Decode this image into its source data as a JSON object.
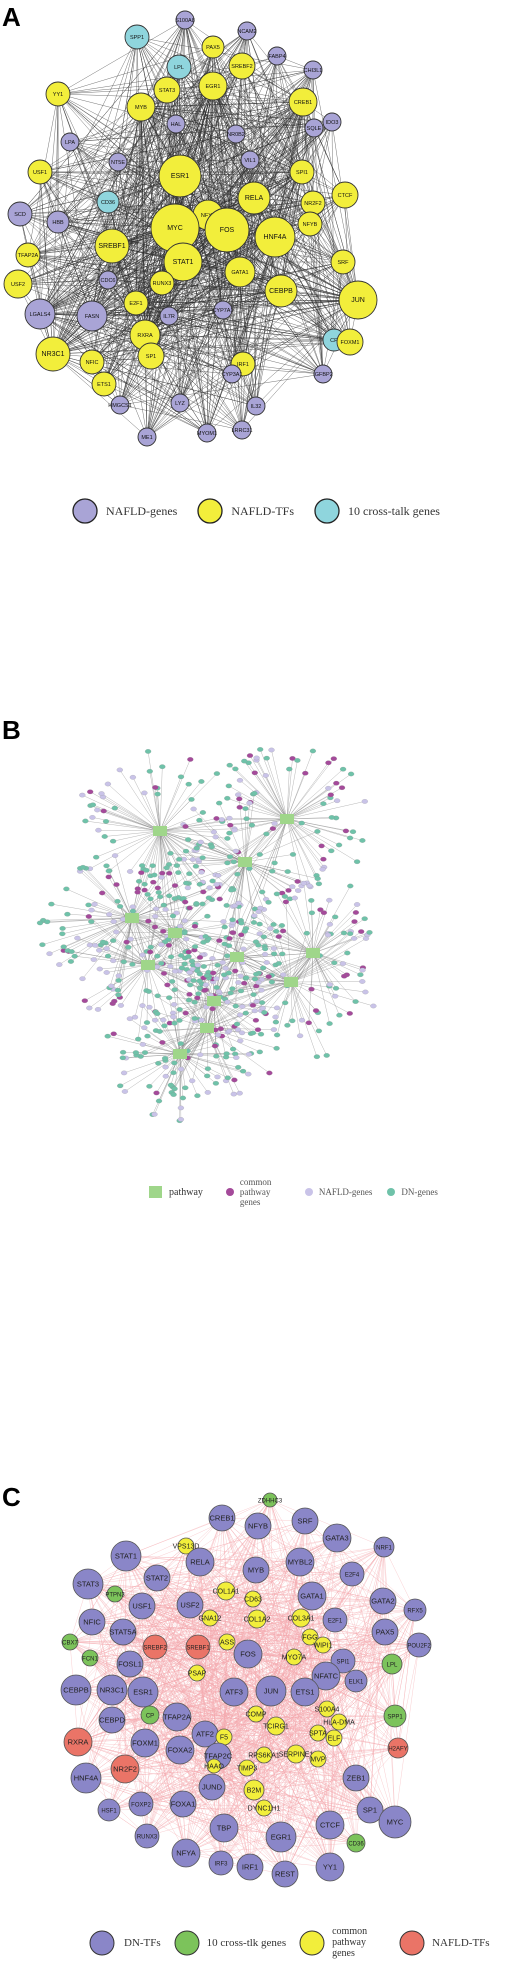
{
  "panels": {
    "a": {
      "label": "A",
      "nodes": [
        {
          "id": "S100A8",
          "t": "g"
        },
        {
          "id": "PAX5",
          "t": "t"
        },
        {
          "id": "NCAM2",
          "t": "g"
        },
        {
          "id": "SPP1",
          "t": "c"
        },
        {
          "id": "LPL",
          "t": "c"
        },
        {
          "id": "STAT3",
          "t": "t"
        },
        {
          "id": "EGR1",
          "t": "t"
        },
        {
          "id": "SREBF2",
          "t": "t"
        },
        {
          "id": "FABP4",
          "t": "g"
        },
        {
          "id": "CHI3L1",
          "t": "g"
        },
        {
          "id": "YY1",
          "t": "t"
        },
        {
          "id": "MYB",
          "t": "t"
        },
        {
          "id": "CREB1",
          "t": "t"
        },
        {
          "id": "HAL",
          "t": "g"
        },
        {
          "id": "NR0B2",
          "t": "g"
        },
        {
          "id": "IDO3",
          "t": "g"
        },
        {
          "id": "LPA",
          "t": "g"
        },
        {
          "id": "USF1",
          "t": "t"
        },
        {
          "id": "SCD",
          "t": "g"
        },
        {
          "id": "ESR1",
          "t": "t"
        },
        {
          "id": "SPI1",
          "t": "t"
        },
        {
          "id": "SQLE",
          "t": "g"
        },
        {
          "id": "NT5E",
          "t": "g"
        },
        {
          "id": "VIL1",
          "t": "g"
        },
        {
          "id": "CTCF",
          "t": "t"
        },
        {
          "id": "RELA",
          "t": "t"
        },
        {
          "id": "NR2F2",
          "t": "t"
        },
        {
          "id": "HBB",
          "t": "g"
        },
        {
          "id": "CD36",
          "t": "c"
        },
        {
          "id": "NFYA",
          "t": "t"
        },
        {
          "id": "NFYB",
          "t": "t"
        },
        {
          "id": "TFAP2A",
          "t": "t"
        },
        {
          "id": "MYC",
          "t": "t"
        },
        {
          "id": "FOS",
          "t": "t"
        },
        {
          "id": "HNF4A",
          "t": "t"
        },
        {
          "id": "SREBF1",
          "t": "t"
        },
        {
          "id": "USF2",
          "t": "t"
        },
        {
          "id": "STAT1",
          "t": "t"
        },
        {
          "id": "GATA1",
          "t": "t"
        },
        {
          "id": "SRF",
          "t": "t"
        },
        {
          "id": "CDC6",
          "t": "g"
        },
        {
          "id": "E2F1",
          "t": "t"
        },
        {
          "id": "RUNX3",
          "t": "t"
        },
        {
          "id": "CEBPB",
          "t": "t"
        },
        {
          "id": "JUN",
          "t": "t"
        },
        {
          "id": "LGALS4",
          "t": "g"
        },
        {
          "id": "IL7R",
          "t": "g"
        },
        {
          "id": "CYP7A1",
          "t": "g"
        },
        {
          "id": "FASN",
          "t": "g"
        },
        {
          "id": "CP",
          "t": "c"
        },
        {
          "id": "FOXM1",
          "t": "t"
        },
        {
          "id": "NR3C1",
          "t": "t"
        },
        {
          "id": "RXRA",
          "t": "t"
        },
        {
          "id": "IGFBP2",
          "t": "g"
        },
        {
          "id": "NFIC",
          "t": "t"
        },
        {
          "id": "SP1",
          "t": "t"
        },
        {
          "id": "IRF1",
          "t": "t"
        },
        {
          "id": "ETS1",
          "t": "t"
        },
        {
          "id": "CYP3A1",
          "t": "g"
        },
        {
          "id": "HMGCS1",
          "t": "g"
        },
        {
          "id": "LYZ",
          "t": "g"
        },
        {
          "id": "IL32",
          "t": "g"
        },
        {
          "id": "ME1",
          "t": "g"
        },
        {
          "id": "MYOM1",
          "t": "g"
        },
        {
          "id": "LRRC31",
          "t": "g"
        }
      ],
      "legend": [
        {
          "label": "NAFLD-genes",
          "color": "#a9a4d6"
        },
        {
          "label": "NAFLD-TFs",
          "color": "#f2ee3b"
        },
        {
          "label": "10 cross-talk genes",
          "color": "#8fd5dd"
        }
      ]
    },
    "b": {
      "label": "B",
      "legend": [
        {
          "label": "pathway",
          "color": "#9fd68a"
        },
        {
          "label": "common pathway genes",
          "color": "#a44a9a"
        },
        {
          "label": "NAFLD-genes",
          "color": "#c9c3e8"
        },
        {
          "label": "DN-genes",
          "color": "#6fc2a9"
        }
      ]
    },
    "c": {
      "label": "C",
      "nodes": [
        {
          "id": "ZDHHC3",
          "t": "x"
        },
        {
          "id": "CREB1",
          "t": "d"
        },
        {
          "id": "SRF",
          "t": "d"
        },
        {
          "id": "NFYB",
          "t": "d"
        },
        {
          "id": "GATA3",
          "t": "d"
        },
        {
          "id": "VPS13D",
          "t": "y"
        },
        {
          "id": "STAT1",
          "t": "d"
        },
        {
          "id": "NRF1",
          "t": "d"
        },
        {
          "id": "RELA",
          "t": "d"
        },
        {
          "id": "MYBL2",
          "t": "d"
        },
        {
          "id": "E2F4",
          "t": "d"
        },
        {
          "id": "MYB",
          "t": "d"
        },
        {
          "id": "STAT3",
          "t": "d"
        },
        {
          "id": "STAT2",
          "t": "d"
        },
        {
          "id": "PTPN3",
          "t": "x"
        },
        {
          "id": "COL1A1",
          "t": "y"
        },
        {
          "id": "GATA1",
          "t": "d"
        },
        {
          "id": "GATA2",
          "t": "d"
        },
        {
          "id": "USF1",
          "t": "d"
        },
        {
          "id": "USF2",
          "t": "d"
        },
        {
          "id": "CD63",
          "t": "y"
        },
        {
          "id": "RFX5",
          "t": "d"
        },
        {
          "id": "E2F1",
          "t": "d"
        },
        {
          "id": "NFIC",
          "t": "d"
        },
        {
          "id": "GNA12",
          "t": "y"
        },
        {
          "id": "COL1A2",
          "t": "y"
        },
        {
          "id": "COL3A1",
          "t": "y"
        },
        {
          "id": "STAT5A",
          "t": "d"
        },
        {
          "id": "FGG",
          "t": "y"
        },
        {
          "id": "PAX5",
          "t": "d"
        },
        {
          "id": "CBX7",
          "t": "x"
        },
        {
          "id": "SREBF2",
          "t": "n"
        },
        {
          "id": "SREBF1",
          "t": "n"
        },
        {
          "id": "WIPI1",
          "t": "y"
        },
        {
          "id": "ASS",
          "t": "y"
        },
        {
          "id": "POU2F2",
          "t": "d"
        },
        {
          "id": "FCN1",
          "t": "x"
        },
        {
          "id": "FOS",
          "t": "d"
        },
        {
          "id": "MYO7A",
          "t": "y"
        },
        {
          "id": "SPI1",
          "t": "d"
        },
        {
          "id": "FOSL1",
          "t": "d"
        },
        {
          "id": "PSAP",
          "t": "y"
        },
        {
          "id": "NFATC",
          "t": "d"
        },
        {
          "id": "LPL",
          "t": "x"
        },
        {
          "id": "CEBPB",
          "t": "d"
        },
        {
          "id": "NR3C1",
          "t": "d"
        },
        {
          "id": "ETS1",
          "t": "d"
        },
        {
          "id": "ELK1",
          "t": "d"
        },
        {
          "id": "ESR1",
          "t": "d"
        },
        {
          "id": "ATF3",
          "t": "d"
        },
        {
          "id": "JUN",
          "t": "d"
        },
        {
          "id": "CP",
          "t": "x"
        },
        {
          "id": "COMP",
          "t": "y"
        },
        {
          "id": "S100A4",
          "t": "y"
        },
        {
          "id": "TFAP2A",
          "t": "d"
        },
        {
          "id": "CEBPD",
          "t": "d"
        },
        {
          "id": "HLA-DMA",
          "t": "y"
        },
        {
          "id": "SPP1",
          "t": "x"
        },
        {
          "id": "TCIRG1",
          "t": "y"
        },
        {
          "id": "SPTA",
          "t": "y"
        },
        {
          "id": "ATF2",
          "t": "d"
        },
        {
          "id": "ELF",
          "t": "y"
        },
        {
          "id": "F5",
          "t": "y"
        },
        {
          "id": "RXRA",
          "t": "n"
        },
        {
          "id": "FOXM1",
          "t": "d"
        },
        {
          "id": "H2AFY",
          "t": "n"
        },
        {
          "id": "FOXA2",
          "t": "d"
        },
        {
          "id": "TFAP2C",
          "t": "d"
        },
        {
          "id": "RPS6KA1",
          "t": "y"
        },
        {
          "id": "SERPINE1",
          "t": "y"
        },
        {
          "id": "MVP",
          "t": "y"
        },
        {
          "id": "NR2F2",
          "t": "n"
        },
        {
          "id": "HAAO",
          "t": "y"
        },
        {
          "id": "TIMP3",
          "t": "y"
        },
        {
          "id": "HNF4A",
          "t": "d"
        },
        {
          "id": "ZEB1",
          "t": "d"
        },
        {
          "id": "B2M",
          "t": "y"
        },
        {
          "id": "DYNC1H1",
          "t": "y"
        },
        {
          "id": "SP1",
          "t": "d"
        },
        {
          "id": "FOXP2",
          "t": "d"
        },
        {
          "id": "FOXA1",
          "t": "d"
        },
        {
          "id": "JUND",
          "t": "d"
        },
        {
          "id": "HSF1",
          "t": "d"
        },
        {
          "id": "MYC",
          "t": "d"
        },
        {
          "id": "TBP",
          "t": "d"
        },
        {
          "id": "EGR1",
          "t": "d"
        },
        {
          "id": "CTCF",
          "t": "d"
        },
        {
          "id": "CD36",
          "t": "x"
        },
        {
          "id": "RUNX3",
          "t": "d"
        },
        {
          "id": "NFYA",
          "t": "d"
        },
        {
          "id": "IRF3",
          "t": "d"
        },
        {
          "id": "IRF1",
          "t": "d"
        },
        {
          "id": "REST",
          "t": "d"
        },
        {
          "id": "YY1",
          "t": "d"
        }
      ],
      "legend": [
        {
          "label": "DN-TFs",
          "color": "#8a86c8"
        },
        {
          "label": "10 cross-tlk genes",
          "color": "#7cc35b"
        },
        {
          "label": "common pathway genes",
          "color": "#f2ee3b"
        },
        {
          "label": "NAFLD-TFs",
          "color": "#ea7467"
        }
      ]
    }
  }
}
